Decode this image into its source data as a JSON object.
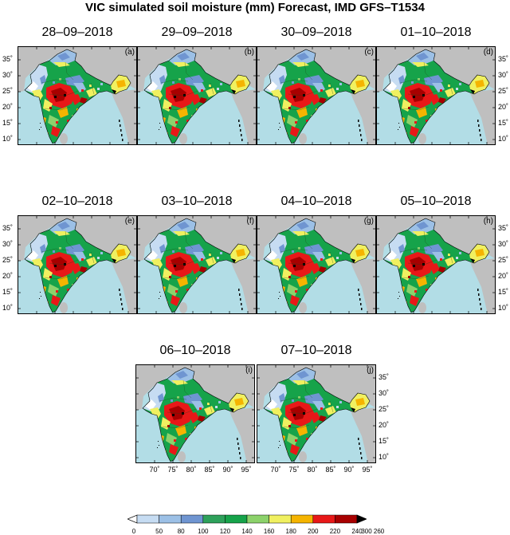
{
  "title": "VIC simulated soil moisture (mm) Forecast, IMD GFS–T1534",
  "colors": {
    "ocean": "#b2dde6",
    "land_outside": "#bfbfbf",
    "scale": [
      "#ffffff",
      "#c6dcf2",
      "#9cc0e6",
      "#6f95d1",
      "#2ea15b",
      "#16a34a",
      "#8cd26b",
      "#f0f060",
      "#f5b400",
      "#e81818",
      "#a80000",
      "#000000"
    ]
  },
  "panels": [
    {
      "date": "28–09–2018",
      "label": "(a)"
    },
    {
      "date": "29–09–2018",
      "label": "(b)"
    },
    {
      "date": "30–09–2018",
      "label": "(c)"
    },
    {
      "date": "01–10–2018",
      "label": "(d)"
    },
    {
      "date": "02–10–2018",
      "label": "(e)"
    },
    {
      "date": "03–10–2018",
      "label": "(f)"
    },
    {
      "date": "04–10–2018",
      "label": "(g)"
    },
    {
      "date": "05–10–2018",
      "label": "(h)"
    },
    {
      "date": "06–10–2018",
      "label": "(i)"
    },
    {
      "date": "07–10–2018",
      "label": "(j)"
    }
  ],
  "lat_ticks": [
    "35˚",
    "30˚",
    "25˚",
    "20˚",
    "15˚",
    "10˚"
  ],
  "lon_ticks": [
    "70˚",
    "75˚",
    "80˚",
    "85˚",
    "90˚",
    "95˚"
  ],
  "colorbar": {
    "labels": [
      "0",
      "50",
      "80",
      "100",
      "120",
      "140",
      "160",
      "180",
      "200",
      "220",
      "240",
      "260",
      "300"
    ]
  }
}
